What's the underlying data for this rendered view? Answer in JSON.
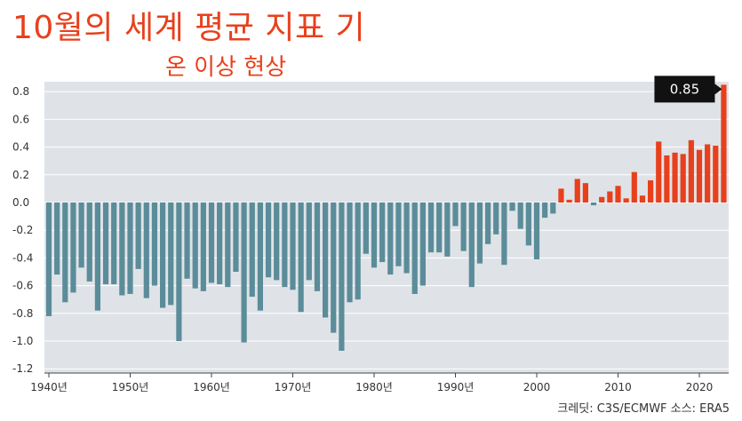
{
  "header": {
    "title": "10월의 세계 평균 지표 기",
    "subtitle": "온 이상 현상"
  },
  "footer": {
    "credit": "크레딧: C3S/ECMWF 소스: ERA5"
  },
  "colors": {
    "negative": "#5b8c99",
    "positive": "#e8401c",
    "plot_bg": "#dfe3e7",
    "grid": "#ffffff",
    "callout_bg": "#111111"
  },
  "chart_data": {
    "type": "bar",
    "title": "10월의 세계 평균 지표 기온 이상 현상",
    "xlabel": "",
    "ylabel": "",
    "ylim": [
      -1.2,
      0.9
    ],
    "yticks": [
      0.8,
      0.6,
      0.4,
      0.2,
      0.0,
      -0.2,
      -0.4,
      -0.6,
      -0.8,
      -1.0,
      -1.2
    ],
    "ytick_labels": [
      "0.8",
      "0.6",
      "0.4",
      "0.2",
      "0.0",
      "-0.2",
      "-0.4",
      "-0.6",
      "-0.8",
      "-1.0",
      "-1.2"
    ],
    "xticks": [
      1940,
      1950,
      1960,
      1970,
      1980,
      1990,
      2000,
      2010,
      2020
    ],
    "xtick_labels": [
      "1940년",
      "1950년",
      "1960년",
      "1970년",
      "1980년",
      "1990년",
      "2000",
      "2010",
      "2020"
    ],
    "grid": true,
    "annotation": {
      "year": 2023,
      "text": "0.85"
    },
    "x": [
      1940,
      1941,
      1942,
      1943,
      1944,
      1945,
      1946,
      1947,
      1948,
      1949,
      1950,
      1951,
      1952,
      1953,
      1954,
      1955,
      1956,
      1957,
      1958,
      1959,
      1960,
      1961,
      1962,
      1963,
      1964,
      1965,
      1966,
      1967,
      1968,
      1969,
      1970,
      1971,
      1972,
      1973,
      1974,
      1975,
      1976,
      1977,
      1978,
      1979,
      1980,
      1981,
      1982,
      1983,
      1984,
      1985,
      1986,
      1987,
      1988,
      1989,
      1990,
      1991,
      1992,
      1993,
      1994,
      1995,
      1996,
      1997,
      1998,
      1999,
      2000,
      2001,
      2002,
      2003,
      2004,
      2005,
      2006,
      2007,
      2008,
      2009,
      2010,
      2011,
      2012,
      2013,
      2014,
      2015,
      2016,
      2017,
      2018,
      2019,
      2020,
      2021,
      2022,
      2023
    ],
    "values": [
      -0.82,
      -0.52,
      -0.72,
      -0.65,
      -0.47,
      -0.57,
      -0.78,
      -0.59,
      -0.59,
      -0.67,
      -0.66,
      -0.48,
      -0.69,
      -0.6,
      -0.76,
      -0.74,
      -1.0,
      -0.55,
      -0.62,
      -0.64,
      -0.58,
      -0.59,
      -0.61,
      -0.5,
      -1.01,
      -0.68,
      -0.78,
      -0.54,
      -0.56,
      -0.61,
      -0.63,
      -0.79,
      -0.56,
      -0.64,
      -0.83,
      -0.94,
      -1.07,
      -0.72,
      -0.7,
      -0.37,
      -0.47,
      -0.43,
      -0.52,
      -0.46,
      -0.51,
      -0.66,
      -0.6,
      -0.36,
      -0.36,
      -0.39,
      -0.17,
      -0.35,
      -0.61,
      -0.44,
      -0.3,
      -0.23,
      -0.45,
      -0.06,
      -0.19,
      -0.31,
      -0.41,
      -0.11,
      -0.08,
      0.1,
      0.02,
      0.17,
      0.14,
      -0.02,
      0.04,
      0.08,
      0.12,
      0.03,
      0.22,
      0.05,
      0.16,
      0.44,
      0.34,
      0.36,
      0.35,
      0.45,
      0.38,
      0.42,
      0.41,
      0.85
    ]
  }
}
